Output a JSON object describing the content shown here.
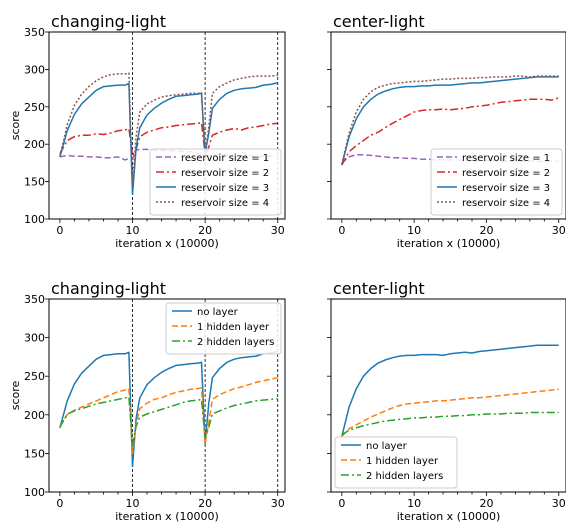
{
  "colors": {
    "purple": "#9467bd",
    "red": "#d62728",
    "blue": "#1f77b4",
    "brown": "#8c564b",
    "orange": "#ff7f0e",
    "green": "#2ca02c"
  },
  "chart_data": [
    {
      "type": "line",
      "title": "changing-light",
      "xlabel": "iteration x (10000)",
      "ylabel": "score",
      "xlim": [
        -1.5,
        31
      ],
      "ylim": [
        100,
        350
      ],
      "xticks": [
        0,
        10,
        20,
        30
      ],
      "yticks": [
        100,
        150,
        200,
        250,
        300,
        350
      ],
      "show_yticklabels": true,
      "vlines": [
        10,
        20,
        30
      ],
      "legend_position": "lower-right",
      "series": [
        {
          "name": "reservoir size = 1",
          "color": "#9467bd",
          "dash": "6,3",
          "x": [
            0,
            1,
            2,
            3,
            4,
            5,
            6,
            7,
            8,
            9,
            9.5,
            10,
            10.5,
            11,
            12,
            13,
            14,
            15,
            16,
            17,
            18,
            19,
            19.5,
            20,
            20.5,
            21,
            22,
            23,
            24,
            25,
            26,
            27,
            28,
            29,
            30
          ],
          "y": [
            183,
            185,
            184,
            184,
            183,
            183,
            182,
            182,
            183,
            179,
            181,
            180,
            192,
            193,
            193,
            192,
            192,
            191,
            191,
            190,
            190,
            188,
            188,
            185,
            185,
            184,
            186,
            185,
            185,
            184,
            185,
            184,
            184,
            184,
            184
          ]
        },
        {
          "name": "reservoir size = 2",
          "color": "#d62728",
          "dash": "8,3,2,3",
          "x": [
            0,
            1,
            2,
            3,
            4,
            5,
            6,
            7,
            8,
            9,
            9.5,
            10,
            10.5,
            11,
            12,
            13,
            14,
            15,
            16,
            17,
            18,
            19,
            19.5,
            20,
            20.5,
            21,
            22,
            23,
            24,
            25,
            26,
            27,
            28,
            29,
            30
          ],
          "y": [
            187,
            205,
            210,
            212,
            212,
            214,
            213,
            215,
            218,
            219,
            221,
            185,
            193,
            210,
            216,
            219,
            222,
            223,
            225,
            226,
            227,
            228,
            229,
            187,
            196,
            212,
            216,
            219,
            221,
            219,
            222,
            223,
            225,
            227,
            228
          ]
        },
        {
          "name": "reservoir size = 3",
          "color": "#1f77b4",
          "dash": "",
          "x": [
            0,
            1,
            2,
            3,
            4,
            5,
            6,
            7,
            8,
            9,
            9.5,
            10,
            10.5,
            11,
            12,
            13,
            14,
            15,
            16,
            17,
            18,
            19,
            19.5,
            20,
            20.5,
            21,
            22,
            23,
            24,
            25,
            26,
            27,
            28,
            29,
            30
          ],
          "y": [
            183,
            218,
            240,
            254,
            263,
            272,
            277,
            278,
            279,
            279,
            281,
            133,
            195,
            222,
            239,
            248,
            255,
            260,
            264,
            265,
            266,
            267,
            268,
            188,
            215,
            248,
            260,
            268,
            272,
            274,
            275,
            276,
            279,
            280,
            282
          ]
        },
        {
          "name": "reservoir size = 4",
          "color": "#8c564b",
          "dash": "2,2",
          "x": [
            0,
            1,
            2,
            3,
            4,
            5,
            6,
            7,
            8,
            9,
            9.5,
            10,
            10.5,
            11,
            12,
            13,
            14,
            15,
            16,
            17,
            18,
            19,
            19.5,
            20,
            20.5,
            21,
            22,
            23,
            24,
            25,
            26,
            27,
            28,
            29,
            30
          ],
          "y": [
            184,
            226,
            252,
            267,
            277,
            285,
            290,
            293,
            294,
            294,
            295,
            146,
            210,
            243,
            254,
            259,
            263,
            265,
            266,
            267,
            268,
            268,
            269,
            189,
            223,
            268,
            277,
            282,
            286,
            288,
            290,
            291,
            291,
            291,
            292
          ]
        }
      ]
    },
    {
      "type": "line",
      "title": "center-light",
      "xlabel": "iteration x (10000)",
      "ylabel": "",
      "xlim": [
        -1.5,
        31
      ],
      "ylim": [
        100,
        350
      ],
      "xticks": [
        0,
        10,
        20,
        30
      ],
      "yticks": [
        100,
        150,
        200,
        250,
        300,
        350
      ],
      "show_yticklabels": false,
      "vlines": [],
      "legend_position": "lower-right",
      "series": [
        {
          "name": "reservoir size = 1",
          "color": "#9467bd",
          "dash": "6,3",
          "x": [
            0,
            1,
            2,
            3,
            4,
            5,
            6,
            7,
            8,
            9,
            10,
            11,
            12,
            13,
            14,
            15,
            16,
            17,
            18,
            19,
            20,
            21,
            22,
            23,
            24,
            25,
            26,
            27,
            28,
            29,
            30
          ],
          "y": [
            175,
            183,
            186,
            186,
            185,
            184,
            183,
            182,
            182,
            181,
            181,
            180,
            180,
            179,
            179,
            179,
            179,
            178,
            178,
            178,
            178,
            178,
            177,
            177,
            177,
            177,
            177,
            177,
            177,
            177,
            177
          ]
        },
        {
          "name": "reservoir size = 2",
          "color": "#d62728",
          "dash": "8,3,2,3",
          "x": [
            0,
            1,
            2,
            3,
            4,
            5,
            6,
            7,
            8,
            9,
            10,
            11,
            12,
            13,
            14,
            15,
            16,
            17,
            18,
            19,
            20,
            21,
            22,
            23,
            24,
            25,
            26,
            27,
            28,
            29,
            30
          ],
          "y": [
            172,
            190,
            198,
            205,
            212,
            216,
            222,
            228,
            233,
            238,
            243,
            245,
            246,
            246,
            247,
            246,
            247,
            248,
            250,
            251,
            252,
            254,
            256,
            257,
            258,
            259,
            260,
            260,
            260,
            259,
            262
          ]
        },
        {
          "name": "reservoir size = 3",
          "color": "#1f77b4",
          "dash": "",
          "x": [
            0,
            1,
            2,
            3,
            4,
            5,
            6,
            7,
            8,
            9,
            10,
            11,
            12,
            13,
            14,
            15,
            16,
            17,
            18,
            19,
            20,
            21,
            22,
            23,
            24,
            25,
            26,
            27,
            28,
            29,
            30
          ],
          "y": [
            172,
            210,
            234,
            250,
            260,
            267,
            271,
            274,
            276,
            277,
            277,
            278,
            278,
            279,
            279,
            279,
            280,
            281,
            282,
            282,
            283,
            284,
            285,
            286,
            287,
            288,
            289,
            290,
            290,
            290,
            290
          ]
        },
        {
          "name": "reservoir size = 4",
          "color": "#8c564b",
          "dash": "2,2",
          "x": [
            0,
            1,
            2,
            3,
            4,
            5,
            6,
            7,
            8,
            9,
            10,
            11,
            12,
            13,
            14,
            15,
            16,
            17,
            18,
            19,
            20,
            21,
            22,
            23,
            24,
            25,
            26,
            27,
            28,
            29,
            30
          ],
          "y": [
            173,
            215,
            243,
            260,
            270,
            276,
            279,
            281,
            282,
            283,
            284,
            284,
            285,
            286,
            287,
            287,
            288,
            288,
            288,
            289,
            289,
            290,
            290,
            290,
            291,
            291,
            290,
            291,
            291,
            291,
            291
          ]
        }
      ]
    },
    {
      "type": "line",
      "title": "changing-light",
      "xlabel": "iteration x (10000)",
      "ylabel": "score",
      "xlim": [
        -1.5,
        31
      ],
      "ylim": [
        100,
        350
      ],
      "xticks": [
        0,
        10,
        20,
        30
      ],
      "yticks": [
        100,
        150,
        200,
        250,
        300,
        350
      ],
      "show_yticklabels": true,
      "vlines": [
        10,
        20,
        30
      ],
      "legend_position": "top-right",
      "series": [
        {
          "name": "no layer",
          "color": "#1f77b4",
          "dash": "",
          "x": [
            0,
            1,
            2,
            3,
            4,
            5,
            6,
            7,
            8,
            9,
            9.5,
            10,
            10.5,
            11,
            12,
            13,
            14,
            15,
            16,
            17,
            18,
            19,
            19.5,
            20,
            20.5,
            21,
            22,
            23,
            24,
            25,
            26,
            27,
            28,
            29,
            30
          ],
          "y": [
            183,
            218,
            240,
            254,
            263,
            272,
            277,
            278,
            279,
            279,
            281,
            133,
            195,
            222,
            239,
            248,
            255,
            260,
            264,
            265,
            266,
            267,
            268,
            163,
            215,
            248,
            260,
            268,
            272,
            274,
            275,
            276,
            279,
            280,
            282
          ]
        },
        {
          "name": "1 hidden layer",
          "color": "#ff7f0e",
          "dash": "6,3",
          "x": [
            0,
            1,
            2,
            3,
            4,
            5,
            6,
            7,
            8,
            9,
            9.5,
            10,
            10.5,
            11,
            12,
            13,
            14,
            15,
            16,
            17,
            18,
            19,
            19.5,
            20,
            20.5,
            21,
            22,
            23,
            24,
            25,
            26,
            27,
            28,
            29,
            30
          ],
          "y": [
            185,
            200,
            206,
            210,
            214,
            218,
            222,
            226,
            230,
            232,
            234,
            150,
            188,
            208,
            215,
            220,
            222,
            226,
            229,
            231,
            233,
            234,
            235,
            162,
            190,
            220,
            226,
            230,
            234,
            236,
            239,
            242,
            244,
            246,
            248
          ]
        },
        {
          "name": "2 hidden layers",
          "color": "#2ca02c",
          "dash": "8,3,2,3",
          "x": [
            0,
            1,
            2,
            3,
            4,
            5,
            6,
            7,
            8,
            9,
            9.5,
            10,
            10.5,
            11,
            12,
            13,
            14,
            15,
            16,
            17,
            18,
            19,
            19.5,
            20,
            20.5,
            21,
            22,
            23,
            24,
            25,
            26,
            27,
            28,
            29,
            30
          ],
          "y": [
            184,
            201,
            205,
            208,
            211,
            214,
            216,
            218,
            220,
            222,
            223,
            160,
            185,
            197,
            201,
            204,
            207,
            210,
            213,
            216,
            218,
            219,
            220,
            170,
            184,
            201,
            205,
            209,
            212,
            214,
            216,
            218,
            219,
            220,
            221
          ]
        }
      ]
    },
    {
      "type": "line",
      "title": "center-light",
      "xlabel": "iteration x (10000)",
      "ylabel": "",
      "xlim": [
        -1.5,
        31
      ],
      "ylim": [
        100,
        350
      ],
      "xticks": [
        0,
        10,
        20,
        30
      ],
      "yticks": [
        100,
        150,
        200,
        250,
        300,
        350
      ],
      "show_yticklabels": false,
      "vlines": [],
      "legend_position": "lower-left",
      "series": [
        {
          "name": "no layer",
          "color": "#1f77b4",
          "dash": "",
          "x": [
            0,
            1,
            2,
            3,
            4,
            5,
            6,
            7,
            8,
            9,
            10,
            11,
            12,
            13,
            14,
            15,
            16,
            17,
            18,
            19,
            20,
            21,
            22,
            23,
            24,
            25,
            26,
            27,
            28,
            29,
            30
          ],
          "y": [
            172,
            210,
            234,
            250,
            260,
            267,
            271,
            274,
            276,
            277,
            277,
            278,
            278,
            278,
            277,
            279,
            280,
            281,
            280,
            282,
            283,
            284,
            285,
            286,
            287,
            288,
            289,
            290,
            290,
            290,
            290
          ]
        },
        {
          "name": "1 hidden layer",
          "color": "#ff7f0e",
          "dash": "6,3",
          "x": [
            0,
            1,
            2,
            3,
            4,
            5,
            6,
            7,
            8,
            9,
            10,
            11,
            12,
            13,
            14,
            15,
            16,
            17,
            18,
            19,
            20,
            21,
            22,
            23,
            24,
            25,
            26,
            27,
            28,
            29,
            30
          ],
          "y": [
            172,
            182,
            187,
            192,
            197,
            201,
            205,
            209,
            212,
            214,
            215,
            216,
            217,
            218,
            218,
            219,
            220,
            221,
            222,
            222,
            223,
            224,
            225,
            226,
            227,
            228,
            229,
            230,
            231,
            232,
            233
          ]
        },
        {
          "name": "2 hidden layers",
          "color": "#2ca02c",
          "dash": "8,3,2,3",
          "x": [
            0,
            1,
            2,
            3,
            4,
            5,
            6,
            7,
            8,
            9,
            10,
            11,
            12,
            13,
            14,
            15,
            16,
            17,
            18,
            19,
            20,
            21,
            22,
            23,
            24,
            25,
            26,
            27,
            28,
            29,
            30
          ],
          "y": [
            174,
            180,
            183,
            186,
            188,
            190,
            192,
            193,
            194,
            195,
            196,
            196,
            197,
            197,
            198,
            198,
            199,
            199,
            200,
            200,
            201,
            201,
            201,
            202,
            202,
            202,
            203,
            203,
            203,
            203,
            203
          ]
        }
      ]
    }
  ]
}
